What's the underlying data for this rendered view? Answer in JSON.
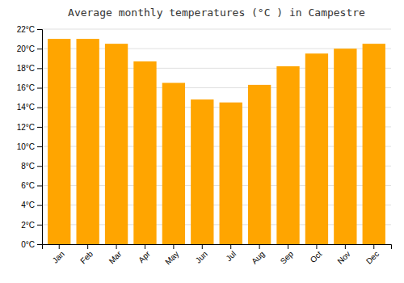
{
  "chart_data": {
    "type": "bar",
    "title": "Average monthly temperatures (°C ) in Campestre",
    "categories": [
      "Jan",
      "Feb",
      "Mar",
      "Apr",
      "May",
      "Jun",
      "Jul",
      "Aug",
      "Sep",
      "Oct",
      "Nov",
      "Dec"
    ],
    "values": [
      21.0,
      21.0,
      20.5,
      18.7,
      16.5,
      14.8,
      14.5,
      16.3,
      18.2,
      19.5,
      20.0,
      20.5
    ],
    "color": "#FFA500",
    "ylim": [
      0,
      22
    ],
    "yticks": [
      {
        "value": 0,
        "label": "0°C"
      },
      {
        "value": 2,
        "label": "2°C"
      },
      {
        "value": 4,
        "label": "4°C"
      },
      {
        "value": 6,
        "label": "6°C"
      },
      {
        "value": 8,
        "label": "8°C"
      },
      {
        "value": 10,
        "label": "10°C"
      },
      {
        "value": 12,
        "label": "12°C"
      },
      {
        "value": 14,
        "label": "14°C"
      },
      {
        "value": 16,
        "label": "16°C"
      },
      {
        "value": 18,
        "label": "18°C"
      },
      {
        "value": 20,
        "label": "20°C"
      },
      {
        "value": 22,
        "label": "22°C"
      }
    ],
    "grid": true
  }
}
